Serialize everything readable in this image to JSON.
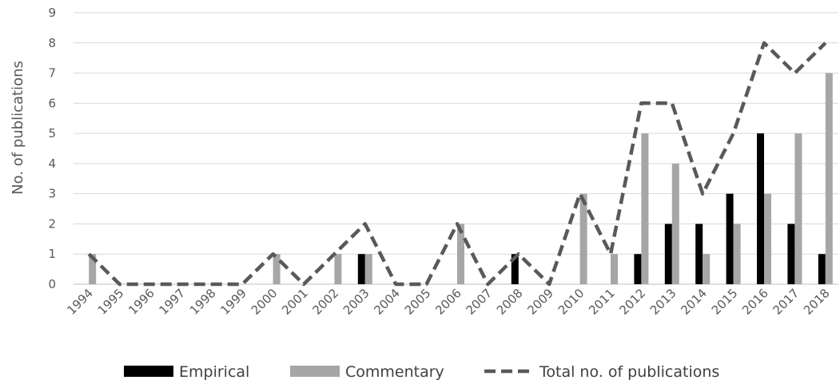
{
  "chart_data": {
    "type": "bar",
    "title": "",
    "xlabel": "",
    "ylabel": "No. of publications",
    "ylim": [
      0,
      9
    ],
    "yticks": [
      "0",
      "1",
      "2",
      "3",
      "4",
      "5",
      "6",
      "7",
      "8",
      "9"
    ],
    "grid": true,
    "legend_position": "bottom",
    "categories": [
      "1994",
      "1995",
      "1996",
      "1997",
      "1998",
      "1999",
      "2000",
      "2001",
      "2002",
      "2003",
      "2004",
      "2005",
      "2006",
      "2007",
      "2008",
      "2009",
      "2010",
      "2011",
      "2012",
      "2013",
      "2014",
      "2015",
      "2016",
      "2017",
      "2018"
    ],
    "series": [
      {
        "name": "Empirical",
        "kind": "bar",
        "color": "#000000",
        "values": [
          0,
          0,
          0,
          0,
          0,
          0,
          0,
          0,
          0,
          1,
          0,
          0,
          0,
          0,
          1,
          0,
          0,
          0,
          1,
          2,
          2,
          3,
          5,
          2,
          1
        ]
      },
      {
        "name": "Commentary",
        "kind": "bar",
        "color": "#a6a6a6",
        "values": [
          1,
          0,
          0,
          0,
          0,
          0,
          1,
          0,
          1,
          1,
          0,
          0,
          2,
          0,
          0,
          0,
          3,
          1,
          5,
          4,
          1,
          2,
          3,
          5,
          7
        ]
      },
      {
        "name": "Total no. of publications",
        "kind": "line",
        "style": "dashed",
        "color": "#595959",
        "values": [
          1,
          0,
          0,
          0,
          0,
          0,
          1,
          0,
          1,
          2,
          0,
          0,
          2,
          0,
          1,
          0,
          3,
          1,
          6,
          6,
          3,
          5,
          8,
          7,
          8
        ]
      }
    ]
  }
}
